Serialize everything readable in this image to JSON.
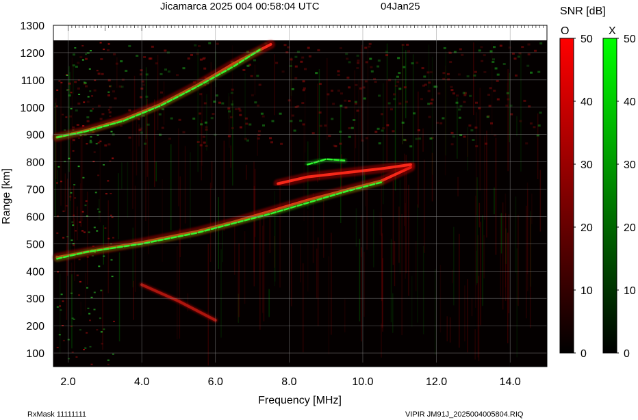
{
  "header": {
    "title": "Jicamarca 2025 004 00:58:04 UTC",
    "date": "04Jan25"
  },
  "footer": {
    "rx_mask": "RxMask 11111111",
    "file": "VIPIR  JM91J_2025004005804.RIQ"
  },
  "chart_data": {
    "type": "heatmap",
    "xlabel": "Frequency [MHz]",
    "ylabel": "Range [km]",
    "xlim": [
      1.6,
      15.0
    ],
    "ylim": [
      50,
      1300
    ],
    "x_ticks": [
      "2.0",
      "4.0",
      "6.0",
      "8.0",
      "10.0",
      "12.0",
      "14.0"
    ],
    "x_tick_values": [
      2.0,
      4.0,
      6.0,
      8.0,
      10.0,
      12.0,
      14.0
    ],
    "y_ticks": [
      100,
      200,
      300,
      400,
      500,
      600,
      700,
      800,
      900,
      1000,
      1100,
      1200,
      1300
    ],
    "grid": true,
    "colorbar": {
      "title": "SNR [dB]",
      "range": [
        0,
        50
      ],
      "ticks": [
        0,
        10,
        20,
        30,
        40,
        50
      ],
      "channels": [
        {
          "name": "O",
          "color_low": "#000000",
          "color_high": "#ff0000"
        },
        {
          "name": "X",
          "color_low": "#000000",
          "color_high": "#00ff00"
        }
      ]
    },
    "traces": [
      {
        "channel": "O",
        "layer": "F 1-hop",
        "points": [
          [
            1.7,
            450
          ],
          [
            2.5,
            470
          ],
          [
            4.0,
            505
          ],
          [
            5.5,
            545
          ],
          [
            6.5,
            580
          ],
          [
            7.5,
            620
          ],
          [
            8.5,
            660
          ],
          [
            9.5,
            695
          ],
          [
            10.5,
            730
          ],
          [
            11.3,
            780
          ]
        ]
      },
      {
        "channel": "X",
        "layer": "F 1-hop",
        "points": [
          [
            1.7,
            445
          ],
          [
            2.5,
            470
          ],
          [
            4.0,
            500
          ],
          [
            5.5,
            540
          ],
          [
            6.5,
            575
          ],
          [
            7.5,
            610
          ],
          [
            8.5,
            650
          ],
          [
            9.5,
            690
          ],
          [
            10.5,
            725
          ]
        ]
      },
      {
        "channel": "O",
        "layer": "F 2-hop",
        "points": [
          [
            1.7,
            890
          ],
          [
            2.5,
            915
          ],
          [
            3.5,
            955
          ],
          [
            4.5,
            1010
          ],
          [
            5.5,
            1080
          ],
          [
            6.5,
            1160
          ],
          [
            7.5,
            1230
          ]
        ]
      },
      {
        "channel": "X",
        "layer": "F 2-hop",
        "points": [
          [
            1.7,
            890
          ],
          [
            2.5,
            912
          ],
          [
            3.5,
            950
          ],
          [
            4.5,
            1005
          ],
          [
            5.5,
            1075
          ],
          [
            6.5,
            1150
          ],
          [
            7.2,
            1210
          ]
        ]
      },
      {
        "channel": "O",
        "layer": "F lower cusp",
        "points": [
          [
            7.7,
            720
          ],
          [
            8.5,
            745
          ],
          [
            9.5,
            760
          ],
          [
            10.5,
            775
          ],
          [
            11.3,
            790
          ]
        ]
      },
      {
        "channel": "X",
        "layer": "F lower cusp",
        "points": [
          [
            8.5,
            790
          ],
          [
            9.0,
            810
          ],
          [
            9.5,
            805
          ]
        ]
      },
      {
        "channel": "O",
        "layer": "oblique echo",
        "points": [
          [
            4.0,
            350
          ],
          [
            5.0,
            290
          ],
          [
            6.0,
            220
          ]
        ]
      }
    ]
  }
}
